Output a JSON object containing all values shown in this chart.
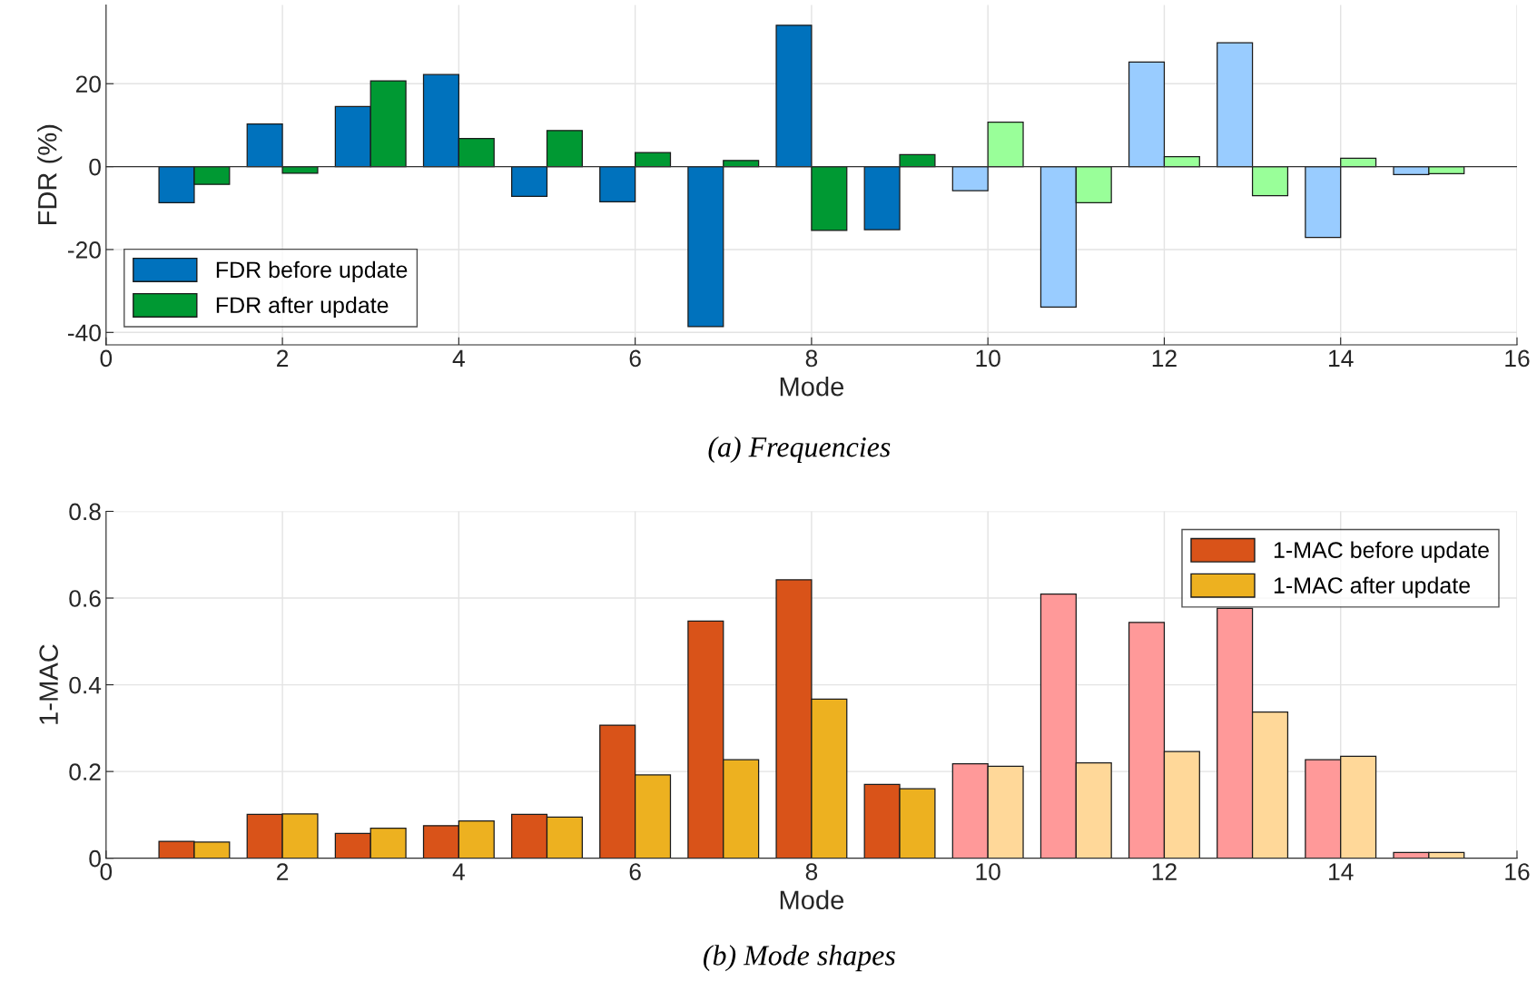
{
  "chart_data": [
    {
      "type": "bar",
      "title": "(a) Frequencies",
      "xlabel": "Mode",
      "ylabel": "FDR (%)",
      "x": [
        1,
        2,
        3,
        4,
        5,
        6,
        7,
        8,
        9,
        10,
        11,
        12,
        13,
        14,
        15
      ],
      "series": [
        {
          "name": "FDR before update",
          "color": "#0072bd",
          "colors": [
            "#0072bd",
            "#0072bd",
            "#0072bd",
            "#0072bd",
            "#0072bd",
            "#0072bd",
            "#0072bd",
            "#0072bd",
            "#0072bd",
            "#99ccff",
            "#99ccff",
            "#99ccff",
            "#99ccff",
            "#99ccff",
            "#99ccff"
          ],
          "values": [
            -8.7,
            10.3,
            14.5,
            22.2,
            -7.2,
            -8.5,
            -38.6,
            34.1,
            -15.2,
            -5.8,
            -33.9,
            25.2,
            29.9,
            -17.1,
            -1.9
          ]
        },
        {
          "name": "FDR after update",
          "color": "#009933",
          "colors": [
            "#009933",
            "#009933",
            "#009933",
            "#009933",
            "#009933",
            "#009933",
            "#009933",
            "#009933",
            "#009933",
            "#99ff99",
            "#99ff99",
            "#99ff99",
            "#99ff99",
            "#99ff99",
            "#99ff99"
          ],
          "values": [
            -4.3,
            -1.6,
            20.7,
            6.8,
            8.7,
            3.4,
            1.5,
            -15.4,
            2.9,
            10.7,
            -8.7,
            2.4,
            -7.0,
            2.0,
            -1.7
          ]
        }
      ],
      "xlim": [
        0,
        16
      ],
      "xticks": [
        0,
        2,
        4,
        6,
        8,
        10,
        12,
        14,
        16
      ],
      "ylim": [
        -43,
        39
      ],
      "yticks": [
        {
          "value": -40,
          "label": "-40"
        },
        {
          "value": -20,
          "label": "-20"
        },
        0,
        20
      ],
      "grid": true,
      "legend": "bottom left"
    },
    {
      "type": "bar",
      "title": "(b) Mode shapes",
      "xlabel": "Mode",
      "ylabel": "1-MAC",
      "x": [
        1,
        2,
        3,
        4,
        5,
        6,
        7,
        8,
        9,
        10,
        11,
        12,
        13,
        14,
        15
      ],
      "series": [
        {
          "name": "1-MAC before update",
          "color": "#d95319",
          "colors": [
            "#d95319",
            "#d95319",
            "#d95319",
            "#d95319",
            "#d95319",
            "#d95319",
            "#d95319",
            "#d95319",
            "#d95319",
            "#ff9999",
            "#ff9999",
            "#ff9999",
            "#ff9999",
            "#ff9999",
            "#ff9999"
          ],
          "values": [
            0.039,
            0.101,
            0.057,
            0.075,
            0.101,
            0.307,
            0.547,
            0.642,
            0.17,
            0.218,
            0.609,
            0.544,
            0.576,
            0.227,
            0.013
          ]
        },
        {
          "name": "1-MAC after update",
          "color": "#edb120",
          "colors": [
            "#edb120",
            "#edb120",
            "#edb120",
            "#edb120",
            "#edb120",
            "#edb120",
            "#edb120",
            "#edb120",
            "#edb120",
            "#ffd899",
            "#ffd899",
            "#ffd899",
            "#ffd899",
            "#ffd899",
            "#ffd899"
          ],
          "values": [
            0.037,
            0.102,
            0.069,
            0.086,
            0.095,
            0.192,
            0.227,
            0.367,
            0.16,
            0.212,
            0.22,
            0.246,
            0.337,
            0.235,
            0.013
          ]
        }
      ],
      "xlim": [
        0,
        16
      ],
      "xticks": [
        0,
        2,
        4,
        6,
        8,
        10,
        12,
        14,
        16
      ],
      "ylim": [
        0,
        0.8
      ],
      "yticks": [
        0,
        0.2,
        0.4,
        0.6,
        0.8
      ],
      "grid": true,
      "legend": "top right"
    }
  ]
}
